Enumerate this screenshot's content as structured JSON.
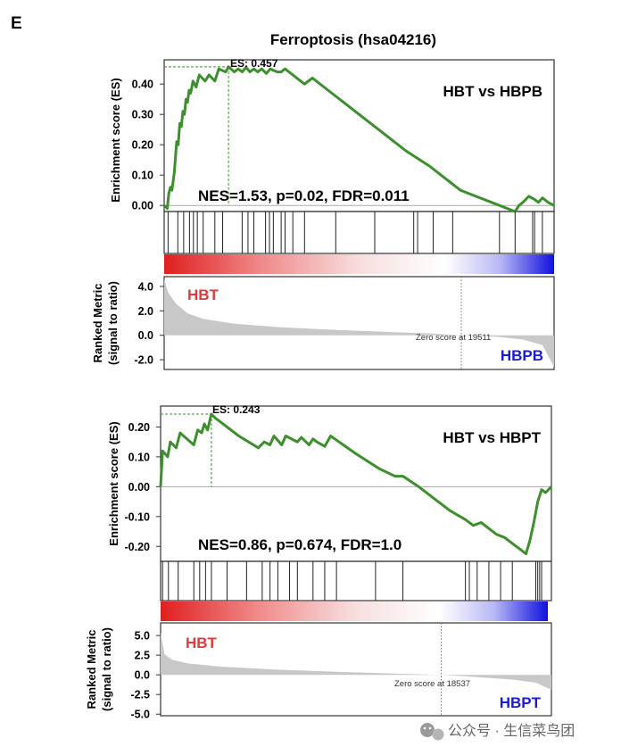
{
  "figure": {
    "panel_letter": "E",
    "title": "Ferroptosis (hsa04216)",
    "watermark": "公众号 · 生信菜鸟团",
    "watermark_icon": "wechat-icon"
  },
  "colors": {
    "es_line": "#3d8f2e",
    "hit_line": "#222222",
    "metric_fill": "#c8c8c8",
    "positive_group": "#e03a3a",
    "negative_group": "#1a1adb",
    "heat_pos": "#e01f1f",
    "heat_neg": "#1010e0"
  },
  "chart_data": [
    {
      "type": "line",
      "comparison": "HBT vs HBPB",
      "ylabel": "Enrichment score (ES)",
      "ylim": [
        -0.02,
        0.48
      ],
      "yticks": [
        "0.00",
        "0.10",
        "0.20",
        "0.30",
        "0.40"
      ],
      "yticks_values": [
        0.0,
        0.1,
        0.2,
        0.3,
        0.4
      ],
      "peak": {
        "label": "ES: 0.457",
        "es": 0.457,
        "rank_fraction": 0.165
      },
      "stats": "NES=1.53, p=0.02, FDR=0.011",
      "es_curve": [
        [
          0.0,
          0.0
        ],
        [
          0.008,
          -0.01
        ],
        [
          0.012,
          0.04
        ],
        [
          0.016,
          0.06
        ],
        [
          0.02,
          0.05
        ],
        [
          0.026,
          0.11
        ],
        [
          0.032,
          0.21
        ],
        [
          0.036,
          0.2
        ],
        [
          0.04,
          0.27
        ],
        [
          0.044,
          0.26
        ],
        [
          0.048,
          0.31
        ],
        [
          0.052,
          0.3
        ],
        [
          0.056,
          0.35
        ],
        [
          0.06,
          0.34
        ],
        [
          0.064,
          0.38
        ],
        [
          0.068,
          0.37
        ],
        [
          0.074,
          0.41
        ],
        [
          0.082,
          0.39
        ],
        [
          0.09,
          0.43
        ],
        [
          0.105,
          0.41
        ],
        [
          0.115,
          0.43
        ],
        [
          0.13,
          0.41
        ],
        [
          0.14,
          0.45
        ],
        [
          0.158,
          0.44
        ],
        [
          0.165,
          0.457
        ],
        [
          0.18,
          0.44
        ],
        [
          0.19,
          0.45
        ],
        [
          0.2,
          0.44
        ],
        [
          0.21,
          0.455
        ],
        [
          0.22,
          0.44
        ],
        [
          0.23,
          0.45
        ],
        [
          0.24,
          0.44
        ],
        [
          0.25,
          0.45
        ],
        [
          0.262,
          0.435
        ],
        [
          0.272,
          0.45
        ],
        [
          0.29,
          0.44
        ],
        [
          0.3,
          0.44
        ],
        [
          0.31,
          0.45
        ],
        [
          0.33,
          0.43
        ],
        [
          0.36,
          0.4
        ],
        [
          0.38,
          0.42
        ],
        [
          0.42,
          0.38
        ],
        [
          0.46,
          0.34
        ],
        [
          0.5,
          0.3
        ],
        [
          0.54,
          0.26
        ],
        [
          0.58,
          0.22
        ],
        [
          0.62,
          0.18
        ],
        [
          0.68,
          0.13
        ],
        [
          0.72,
          0.09
        ],
        [
          0.76,
          0.05
        ],
        [
          0.8,
          0.03
        ],
        [
          0.84,
          0.01
        ],
        [
          0.88,
          -0.01
        ],
        [
          0.9,
          -0.02
        ],
        [
          0.91,
          0.0
        ],
        [
          0.92,
          0.01
        ],
        [
          0.935,
          0.03
        ],
        [
          0.95,
          0.02
        ],
        [
          0.96,
          0.01
        ],
        [
          0.97,
          0.025
        ],
        [
          0.985,
          0.01
        ],
        [
          1.0,
          0.0
        ]
      ],
      "hits": [
        0.01,
        0.035,
        0.05,
        0.065,
        0.075,
        0.085,
        0.1,
        0.13,
        0.15,
        0.2,
        0.215,
        0.23,
        0.26,
        0.27,
        0.28,
        0.3,
        0.31,
        0.33,
        0.36,
        0.44,
        0.54,
        0.64,
        0.65,
        0.69,
        0.74,
        0.86,
        0.9,
        0.945,
        0.95,
        0.97
      ],
      "metric": {
        "yticks": [
          "4.0",
          "2.0",
          "0.0",
          "-2.0"
        ],
        "yticks_values": [
          4.0,
          2.0,
          0.0,
          -2.0
        ],
        "ylim": [
          -2.8,
          4.8
        ],
        "positive_label": "HBT",
        "negative_label": "HBPB",
        "zero_score_label": "Zero score at 19511",
        "zero_fraction": 0.762,
        "curve": [
          [
            0.0,
            4.6
          ],
          [
            0.01,
            3.5
          ],
          [
            0.03,
            2.6
          ],
          [
            0.06,
            1.8
          ],
          [
            0.1,
            1.35
          ],
          [
            0.18,
            0.95
          ],
          [
            0.3,
            0.65
          ],
          [
            0.45,
            0.42
          ],
          [
            0.6,
            0.24
          ],
          [
            0.7,
            0.12
          ],
          [
            0.762,
            0.0
          ],
          [
            0.85,
            -0.12
          ],
          [
            0.92,
            -0.35
          ],
          [
            0.97,
            -0.8
          ],
          [
            1.0,
            -2.6
          ]
        ]
      },
      "ylabel_metric": "Ranked Metric\n(signal to ratio)"
    },
    {
      "type": "line",
      "comparison": "HBT vs HBPT",
      "ylabel": "Enrichment score (ES)",
      "ylim": [
        -0.25,
        0.27
      ],
      "yticks": [
        "0.20",
        "0.10",
        "0.00",
        "-0.10",
        "-0.20"
      ],
      "yticks_values": [
        0.2,
        0.1,
        0.0,
        -0.1,
        -0.2
      ],
      "peak": {
        "label": "ES: 0.243",
        "es": 0.243,
        "rank_fraction": 0.13
      },
      "stats": "NES=0.86, p=0.674, FDR=1.0",
      "es_curve": [
        [
          0.0,
          0.0
        ],
        [
          0.005,
          0.12
        ],
        [
          0.018,
          0.1
        ],
        [
          0.025,
          0.15
        ],
        [
          0.04,
          0.13
        ],
        [
          0.05,
          0.18
        ],
        [
          0.085,
          0.14
        ],
        [
          0.095,
          0.19
        ],
        [
          0.105,
          0.18
        ],
        [
          0.112,
          0.21
        ],
        [
          0.12,
          0.19
        ],
        [
          0.13,
          0.243
        ],
        [
          0.14,
          0.23
        ],
        [
          0.15,
          0.22
        ],
        [
          0.2,
          0.17
        ],
        [
          0.25,
          0.13
        ],
        [
          0.265,
          0.15
        ],
        [
          0.28,
          0.14
        ],
        [
          0.29,
          0.17
        ],
        [
          0.31,
          0.14
        ],
        [
          0.32,
          0.17
        ],
        [
          0.35,
          0.15
        ],
        [
          0.36,
          0.165
        ],
        [
          0.38,
          0.14
        ],
        [
          0.39,
          0.16
        ],
        [
          0.4,
          0.15
        ],
        [
          0.42,
          0.135
        ],
        [
          0.435,
          0.17
        ],
        [
          0.5,
          0.11
        ],
        [
          0.56,
          0.06
        ],
        [
          0.6,
          0.035
        ],
        [
          0.62,
          0.035
        ],
        [
          0.66,
          0.0
        ],
        [
          0.7,
          -0.04
        ],
        [
          0.74,
          -0.08
        ],
        [
          0.78,
          -0.11
        ],
        [
          0.8,
          -0.13
        ],
        [
          0.82,
          -0.12
        ],
        [
          0.84,
          -0.14
        ],
        [
          0.86,
          -0.16
        ],
        [
          0.88,
          -0.17
        ],
        [
          0.9,
          -0.19
        ],
        [
          0.92,
          -0.21
        ],
        [
          0.935,
          -0.225
        ],
        [
          0.945,
          -0.18
        ],
        [
          0.955,
          -0.12
        ],
        [
          0.965,
          -0.05
        ],
        [
          0.975,
          -0.01
        ],
        [
          0.985,
          -0.02
        ],
        [
          1.0,
          0.0
        ]
      ],
      "hits": [
        0.005,
        0.02,
        0.045,
        0.085,
        0.1,
        0.115,
        0.13,
        0.17,
        0.22,
        0.26,
        0.28,
        0.3,
        0.33,
        0.35,
        0.39,
        0.42,
        0.45,
        0.55,
        0.62,
        0.78,
        0.79,
        0.81,
        0.84,
        0.87,
        0.9,
        0.96,
        0.965,
        0.97,
        0.975
      ],
      "metric": {
        "yticks": [
          "5.0",
          "2.5",
          "0.0",
          "-2.5",
          "-5.0"
        ],
        "yticks_values": [
          5.0,
          2.5,
          0.0,
          -2.5,
          -5.0
        ],
        "ylim": [
          -5.2,
          6.6
        ],
        "positive_label": "HBT",
        "negative_label": "HBPT",
        "zero_score_label": "Zero score at 18537",
        "zero_fraction": 0.718,
        "curve": [
          [
            0.0,
            5.4
          ],
          [
            0.01,
            2.6
          ],
          [
            0.03,
            1.9
          ],
          [
            0.07,
            1.45
          ],
          [
            0.15,
            1.05
          ],
          [
            0.3,
            0.65
          ],
          [
            0.45,
            0.38
          ],
          [
            0.6,
            0.16
          ],
          [
            0.718,
            0.0
          ],
          [
            0.8,
            -0.25
          ],
          [
            0.9,
            -0.6
          ],
          [
            0.96,
            -1.0
          ],
          [
            1.0,
            -1.9
          ]
        ]
      },
      "ylabel_metric": "Ranked Metric\n(signal to ratio)"
    }
  ]
}
